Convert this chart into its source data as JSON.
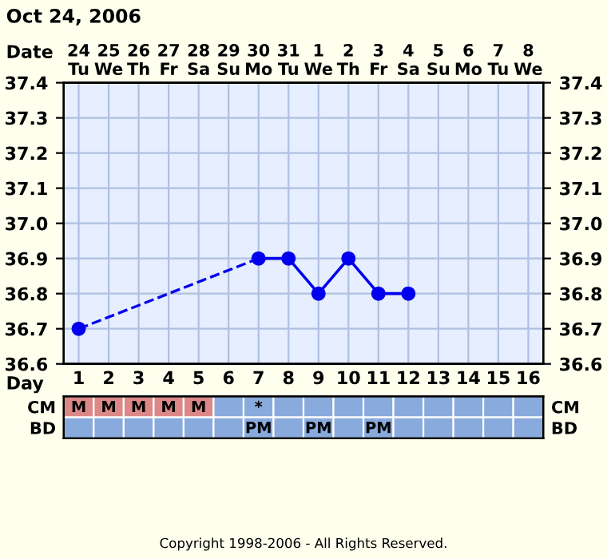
{
  "chart_data": [
    {
      "type": "line",
      "title": "Oct 24, 2006",
      "xlabel": "Day",
      "x2label": "Date",
      "x": [
        1,
        2,
        3,
        4,
        5,
        6,
        7,
        8,
        9,
        10,
        11,
        12
      ],
      "xlim": [
        0.5,
        16.5
      ],
      "xticks": [
        1,
        2,
        3,
        4,
        5,
        6,
        7,
        8,
        9,
        10,
        11,
        12,
        13,
        14,
        15,
        16
      ],
      "x2lim": [
        "2006-10-23T12:00",
        "2006-11-08T12:00"
      ],
      "x2ticks": [
        {
          "value": "2006-10-24",
          "label": "24\nTu"
        },
        {
          "value": "2006-10-25",
          "label": "25\nWe"
        },
        {
          "value": "2006-10-26",
          "label": "26\nTh"
        },
        {
          "value": "2006-10-27",
          "label": "27\nFr"
        },
        {
          "value": "2006-10-28",
          "label": "28\nSa"
        },
        {
          "value": "2006-10-29",
          "label": "29\nSu"
        },
        {
          "value": "2006-10-30",
          "label": "30\nMo"
        },
        {
          "value": "2006-10-31",
          "label": "31\nTu"
        },
        {
          "value": "2006-11-01",
          "label": "1\nWe"
        },
        {
          "value": "2006-11-02",
          "label": "2\nTh"
        },
        {
          "value": "2006-11-03",
          "label": "3\nFr"
        },
        {
          "value": "2006-11-04",
          "label": "4\nSa"
        },
        {
          "value": "2006-11-05",
          "label": "5\nSu"
        },
        {
          "value": "2006-11-06",
          "label": "6\nMo"
        },
        {
          "value": "2006-11-07",
          "label": "7\nTu"
        },
        {
          "value": "2006-11-08",
          "label": "8\nWe"
        }
      ],
      "series": [
        {
          "color": "#0000ee",
          "values": [
            36.7,
            null,
            null,
            null,
            null,
            null,
            36.9,
            36.9,
            36.8,
            36.9,
            36.8,
            36.8
          ]
        }
      ],
      "ylim": [
        36.6,
        37.4
      ],
      "yticks": [
        36.6,
        36.7,
        36.8,
        36.9,
        {
          "value": 37,
          "label": "37.0"
        },
        37.1,
        37.2,
        37.3,
        37.4
      ],
      "y2lim": [
        36.6,
        37.4
      ],
      "y2ticks": [
        36.6,
        36.7,
        36.8,
        36.9,
        {
          "value": 37,
          "label": "37.0"
        },
        37.1,
        37.2,
        37.3,
        37.4
      ],
      "grid": true,
      "marker": "circle",
      "line_style": "solid"
    },
    {
      "type": "other",
      "y_categories": [
        "CM",
        "BD"
      ],
      "y2_categories": [
        "CM",
        "BD"
      ],
      "cell_labels": [
        [
          "M",
          "M",
          "M",
          "M",
          "M",
          null,
          "*",
          null,
          null,
          null,
          null,
          null,
          null,
          null,
          null,
          null
        ],
        [
          null,
          null,
          null,
          null,
          null,
          null,
          "PM",
          null,
          "PM",
          null,
          "PM",
          null,
          null,
          null,
          null,
          null
        ]
      ],
      "colors": [
        [
          "#dd8888",
          "#dd8888",
          "#dd8888",
          "#dd8888",
          "#dd8888",
          "#88aadd",
          "#88aadd",
          "#88aadd",
          "#88aadd",
          "#88aadd",
          "#88aadd",
          "#88aadd",
          "#88aadd",
          "#88aadd",
          "#88aadd",
          "#88aadd"
        ],
        [
          "#88aadd",
          "#88aadd",
          "#88aadd",
          "#88aadd",
          "#88aadd",
          "#88aadd",
          "#88aadd",
          "#88aadd",
          "#88aadd",
          "#88aadd",
          "#88aadd",
          "#88aadd",
          "#88aadd",
          "#88aadd",
          "#88aadd",
          "#88aadd"
        ]
      ],
      "annotations": [
        "Copyright 1998-2006 - All Rights Reserved."
      ]
    }
  ]
}
